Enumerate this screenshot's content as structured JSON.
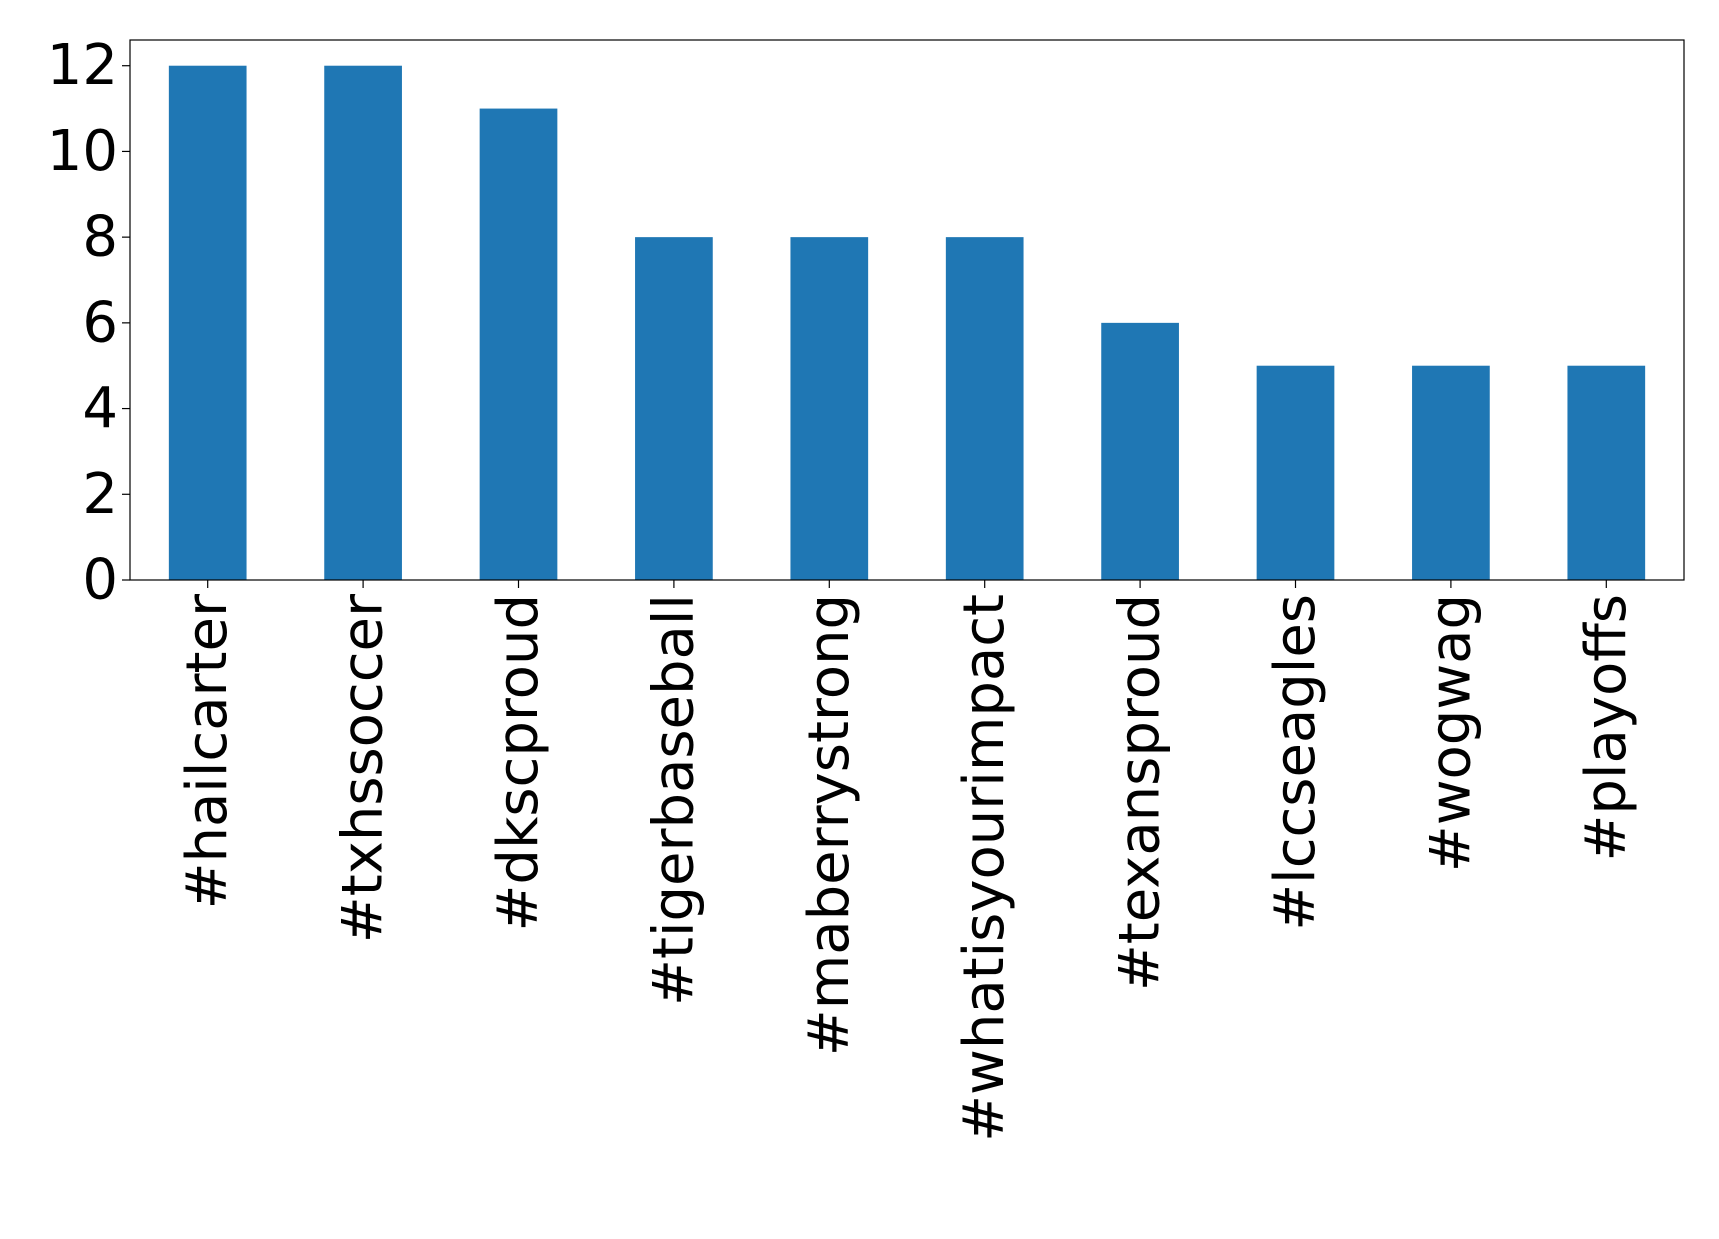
{
  "chart_data": {
    "type": "bar",
    "categories": [
      "#hailcarter",
      "#txhssoccer",
      "#dkscproud",
      "#tigerbaseball",
      "#maberrystrong",
      "#whatisyourimpact",
      "#texansproud",
      "#lccseagles",
      "#wogwag",
      "#playoffs"
    ],
    "values": [
      12,
      12,
      11,
      8,
      8,
      8,
      6,
      5,
      5,
      5
    ],
    "color": "#1f77b4",
    "ylim": [
      0,
      12.6
    ],
    "yticks": [
      0,
      2,
      4,
      6,
      8,
      10,
      12
    ],
    "grid": false
  }
}
